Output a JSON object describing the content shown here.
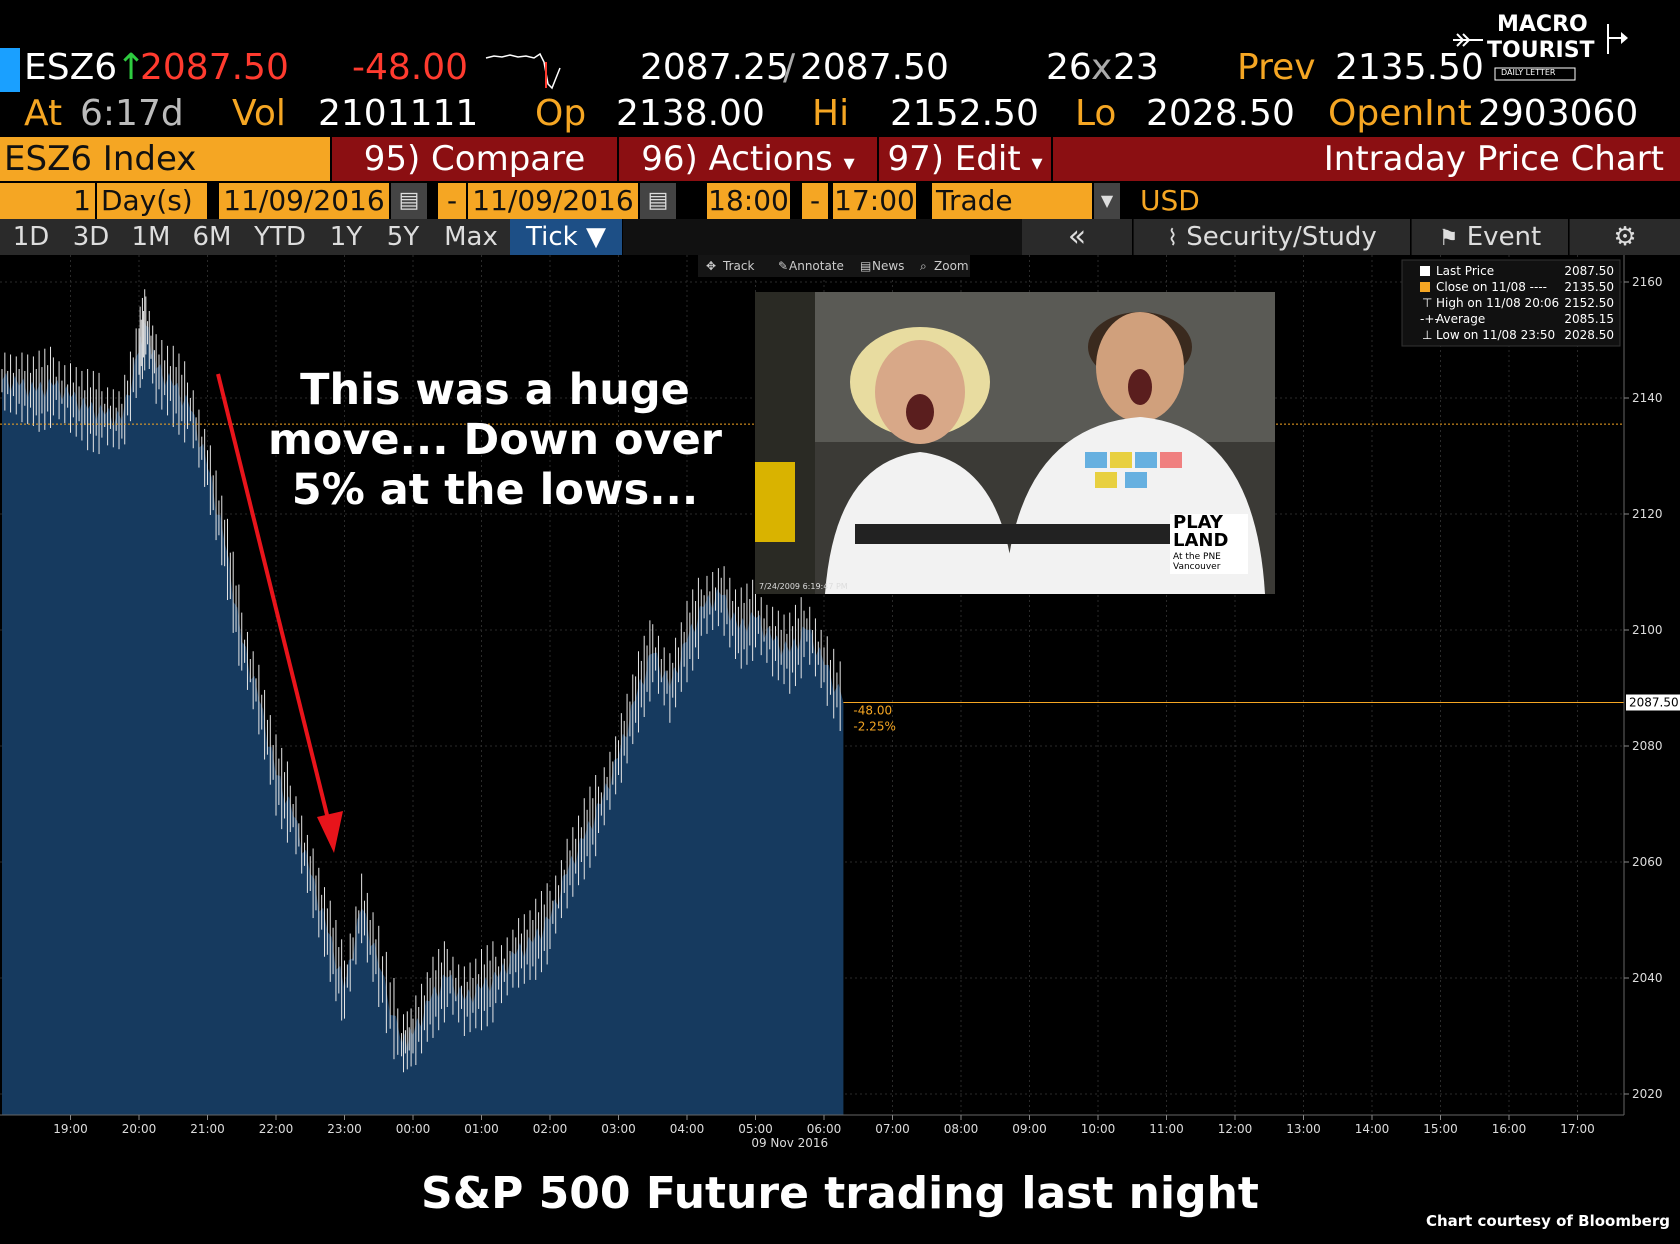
{
  "header": {
    "ticker": "ESZ6",
    "arrow": "↑",
    "last": "2087.50",
    "change": "-48.00",
    "bid_ask_bid": "2087.25",
    "bid_ask_sep": "/",
    "bid_ask_ask": "2087.50",
    "size_bid": "26",
    "size_x": "x",
    "size_ask": "23",
    "prev_label": "Prev",
    "prev_value": "2135.50",
    "at_label": "At",
    "at_value": "6:17d",
    "vol_label": "Vol",
    "vol_value": "2101111",
    "op_label": "Op",
    "op_value": "2138.00",
    "hi_label": "Hi",
    "hi_value": "2152.50",
    "lo_label": "Lo",
    "lo_value": "2028.50",
    "openint_label": "OpenInt",
    "openint_value": "2903060"
  },
  "logo": {
    "line1": "MACRO",
    "line2": "TOURIST",
    "line3": "DAILY LETTER"
  },
  "toolbar": {
    "security": "ESZ6 Index",
    "compare": "95) Compare",
    "actions": "96) Actions",
    "actions_caret": "▾",
    "edit": "97) Edit",
    "edit_caret": "▾",
    "title": "Intraday Price Chart"
  },
  "range": {
    "count": "1",
    "unit": "Day(s)",
    "start_date": "11/09/2016",
    "dash": "-",
    "end_date": "11/09/2016",
    "start_time": "18:00",
    "end_time": "17:00",
    "mode": "Trade",
    "currency": "USD"
  },
  "period_tabs": [
    "1D",
    "3D",
    "1M",
    "6M",
    "YTD",
    "1Y",
    "5Y",
    "Max",
    "Tick ▼"
  ],
  "right_tools": {
    "collapse": "«",
    "security_study": "Security/Study",
    "event": "Event"
  },
  "chart_tools": [
    "Track",
    "Annotate",
    "News",
    "Zoom"
  ],
  "legend": [
    {
      "label": "Last Price",
      "value": "2087.50"
    },
    {
      "label": "Close on 11/08 ----",
      "value": "2135.50"
    },
    {
      "label": "High on 11/08 20:06",
      "value": "2152.50"
    },
    {
      "label": "Average",
      "value": "2085.15"
    },
    {
      "label": "Low on 11/08 23:50",
      "value": "2028.50"
    }
  ],
  "photo_text": {
    "brand_line1": "PLAY",
    "brand_line2": "LAND",
    "brand_line3": "At the PNE",
    "brand_line4": "Vancouver",
    "stamp": "7/24/2009 6:19:47 PM"
  },
  "annotation": "This was a huge move... Down over 5% at the lows...",
  "change_labels": {
    "abs": "-48.00",
    "pct": "-2.25%"
  },
  "last_price_tag": "2087.50",
  "caption": "S&P 500 Future trading last night",
  "credit": "Chart courtesy of Bloomberg",
  "colors": {
    "accent_amber": "#f5a623",
    "toolbar_red": "#8b0f12",
    "area_fill": "#163a5f",
    "arrow_red": "#e8141b"
  },
  "chart_data": {
    "type": "area",
    "x_tick_labels": [
      "19:00",
      "20:00",
      "21:00",
      "22:00",
      "23:00",
      "00:00",
      "01:00",
      "02:00",
      "03:00",
      "04:00",
      "05:00",
      "06:00",
      "07:00",
      "08:00",
      "09:00",
      "10:00",
      "11:00",
      "12:00",
      "13:00",
      "14:00",
      "15:00",
      "16:00",
      "17:00"
    ],
    "x_date_label": "09 Nov 2016",
    "y_tick_labels": [
      "2020",
      "2040",
      "2060",
      "2080",
      "2100",
      "2120",
      "2140",
      "2160"
    ],
    "ylim": [
      2018,
      2164
    ],
    "prev_close": 2135.5,
    "last_price": 2087.5,
    "x": [
      "18:00",
      "18:15",
      "18:30",
      "18:45",
      "19:00",
      "19:15",
      "19:30",
      "19:45",
      "20:00",
      "20:06",
      "20:15",
      "20:30",
      "20:45",
      "21:00",
      "21:15",
      "21:30",
      "21:45",
      "22:00",
      "22:15",
      "22:30",
      "22:45",
      "23:00",
      "23:15",
      "23:30",
      "23:50",
      "00:00",
      "00:15",
      "00:30",
      "00:45",
      "01:00",
      "01:15",
      "01:30",
      "01:45",
      "02:00",
      "02:15",
      "02:30",
      "02:45",
      "03:00",
      "03:15",
      "03:30",
      "03:45",
      "04:00",
      "04:15",
      "04:30",
      "04:45",
      "05:00",
      "05:15",
      "05:30",
      "05:45",
      "06:00",
      "06:17"
    ],
    "series": [
      {
        "values": [
          2143,
          2142,
          2141,
          2142,
          2140,
          2138,
          2137,
          2136,
          2148,
          2152.5,
          2145,
          2142,
          2138,
          2128,
          2115,
          2098,
          2088,
          2075,
          2068,
          2058,
          2048,
          2038,
          2052,
          2042,
          2028.5,
          2030,
          2036,
          2040,
          2036,
          2038,
          2040,
          2044,
          2046,
          2050,
          2058,
          2064,
          2070,
          2078,
          2088,
          2096,
          2090,
          2098,
          2104,
          2106,
          2100,
          2102,
          2098,
          2096,
          2100,
          2094,
          2087.5
        ]
      }
    ],
    "grid": true
  }
}
